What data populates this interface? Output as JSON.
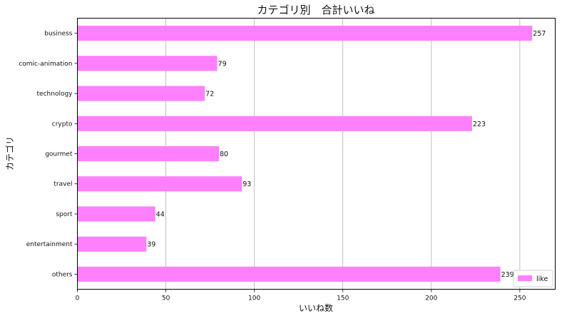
{
  "chart_data": {
    "type": "bar",
    "orientation": "horizontal",
    "title": "カテゴリ別　合計いいね",
    "xlabel": "いいね数",
    "ylabel": "カテゴリ",
    "categories": [
      "business",
      "comic-animation",
      "technology",
      "crypto",
      "gourmet",
      "travel",
      "sport",
      "entertainment",
      "others"
    ],
    "series": [
      {
        "name": "like",
        "values": [
          257,
          79,
          72,
          223,
          80,
          93,
          44,
          39,
          239
        ],
        "color": "#ff80ff"
      }
    ],
    "xlim": [
      0,
      270
    ],
    "xticks": [
      0,
      50,
      100,
      150,
      200,
      250
    ],
    "grid": "vertical",
    "legend_position": "bottom-right"
  }
}
